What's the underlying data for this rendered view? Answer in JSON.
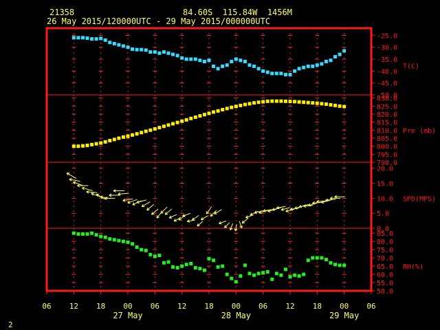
{
  "header": {
    "station": "21358",
    "location": "84.60S  115.84W  1456M",
    "period": "26 May 2015/120000UTC - 29 May 2015/000000UTC"
  },
  "page_number": "2",
  "colors": {
    "frame": "#ff1a1a",
    "grid": "#ff3030",
    "text": "#ffff66",
    "temperature": "#33ddff",
    "pressure": "#ffee00",
    "wind": "#ffff66",
    "humidity": "#22ee22",
    "background": "#000000"
  },
  "chart_data": {
    "type": "scatter",
    "x_unit": "hours from 26 May 2015 06UTC",
    "x_tick_labels": [
      "06",
      "12",
      "18",
      "00",
      "06",
      "12",
      "18",
      "00",
      "06",
      "12",
      "18",
      "00",
      "06"
    ],
    "x_tick_values": [
      0,
      6,
      12,
      18,
      24,
      30,
      36,
      42,
      48,
      54,
      60,
      66,
      72
    ],
    "date_labels": [
      {
        "label": "27 May",
        "x": 18
      },
      {
        "label": "28 May",
        "x": 42
      },
      {
        "label": "29 May",
        "x": 66
      }
    ],
    "xlim": [
      0,
      72
    ],
    "panels": [
      {
        "key": "temperature",
        "ylabel": "T(C)",
        "ylim": [
          -50,
          -22
        ],
        "ticks": [
          -25,
          -30,
          -35,
          -40,
          -45,
          -50
        ],
        "tick_labels": [
          "-25.0",
          "-30.0",
          "-35.0",
          "-40.0",
          "-45.0",
          "-50.0"
        ],
        "series": {
          "x": [
            6,
            7,
            8,
            9,
            10,
            11,
            12,
            13,
            14,
            15,
            16,
            17,
            18,
            19,
            20,
            21,
            22,
            23,
            24,
            25,
            26,
            27,
            28,
            29,
            30,
            31,
            32,
            33,
            34,
            35,
            36,
            37,
            38,
            39,
            40,
            41,
            42,
            43,
            44,
            45,
            46,
            47,
            48,
            49,
            50,
            51,
            52,
            53,
            54,
            55,
            56,
            57,
            58,
            59,
            60,
            61,
            62,
            63,
            64,
            65,
            66
          ],
          "y": [
            -26,
            -26,
            -26,
            -26.2,
            -26.5,
            -26.5,
            -26.3,
            -27,
            -28,
            -28.5,
            -29,
            -29.5,
            -30,
            -30.8,
            -31,
            -31,
            -31.2,
            -32,
            -32,
            -32.5,
            -32,
            -32.5,
            -33,
            -33.5,
            -34.5,
            -35,
            -35,
            -35,
            -35.5,
            -36,
            -35.5,
            -38,
            -39,
            -38,
            -37.5,
            -36,
            -35,
            -35.5,
            -36,
            -37.5,
            -38,
            -39,
            -40,
            -40.5,
            -41,
            -41,
            -41,
            -41.5,
            -41.5,
            -40,
            -39,
            -38.5,
            -38,
            -38,
            -37.5,
            -37,
            -36,
            -35.5,
            -34,
            -33,
            -31.5
          ]
        }
      },
      {
        "key": "pressure",
        "ylabel": "Pre (mb)",
        "ylim": [
          790,
          832
        ],
        "ticks": [
          830,
          825,
          820,
          815,
          810,
          805,
          800,
          795,
          790
        ],
        "tick_labels": [
          "830.0",
          "825.0",
          "820.0",
          "815.0",
          "810.0",
          "805.0",
          "800.0",
          "795.0",
          "790.0"
        ],
        "series": {
          "x": [
            6,
            7,
            8,
            9,
            10,
            11,
            12,
            13,
            14,
            15,
            16,
            17,
            18,
            19,
            20,
            21,
            22,
            23,
            24,
            25,
            26,
            27,
            28,
            29,
            30,
            31,
            32,
            33,
            34,
            35,
            36,
            37,
            38,
            39,
            40,
            41,
            42,
            43,
            44,
            45,
            46,
            47,
            48,
            49,
            50,
            51,
            52,
            53,
            54,
            55,
            56,
            57,
            58,
            59,
            60,
            61,
            62,
            63,
            64,
            65,
            66
          ],
          "y": [
            800,
            800,
            800.2,
            800.5,
            801,
            801.5,
            802,
            802.7,
            803.5,
            804.2,
            805,
            805.7,
            806.3,
            807,
            807.7,
            808.5,
            809.3,
            810,
            810.8,
            811.6,
            812.4,
            813.2,
            814,
            814.8,
            815.6,
            816.4,
            817.3,
            818.1,
            818.9,
            819.7,
            820.5,
            821.3,
            822,
            822.8,
            823.5,
            824.2,
            824.8,
            825.4,
            826,
            826.5,
            827,
            827.4,
            827.7,
            828,
            828.1,
            828.1,
            828.1,
            828,
            827.9,
            827.8,
            827.6,
            827.4,
            827.2,
            827,
            826.8,
            826.5,
            826.2,
            825.8,
            825.4,
            825,
            824.7
          ]
        }
      },
      {
        "key": "wind",
        "ylabel": "SPD(MPS)",
        "ylim": [
          0,
          22
        ],
        "ticks": [
          20,
          15,
          10,
          5,
          0
        ],
        "tick_labels": [
          "20.0",
          "15.0",
          "10.0",
          "5.0",
          "0.0"
        ],
        "series": {
          "x": [
            5.5,
            6.2,
            7,
            8,
            9,
            10,
            11,
            12,
            13,
            14,
            15,
            16,
            17,
            18,
            19,
            20,
            21,
            22,
            23,
            24,
            25,
            26,
            27,
            28,
            29,
            30,
            31,
            32,
            33,
            34,
            35,
            36,
            37,
            38,
            39,
            40,
            41,
            42,
            43,
            44,
            45,
            46,
            47,
            48,
            49,
            50,
            51,
            52,
            53,
            54,
            55,
            56,
            57,
            58,
            59,
            60,
            61,
            62,
            63,
            64,
            65
          ],
          "y": [
            17.5,
            16,
            14.8,
            14.2,
            13,
            12,
            11,
            10.5,
            10.2,
            10,
            11,
            12.5,
            11.5,
            9.5,
            9,
            8.5,
            9,
            8,
            7,
            5.5,
            4.5,
            6,
            5.5,
            4,
            3,
            3.5,
            4.5,
            2.5,
            3.5,
            1.5,
            3.5,
            6,
            5,
            5.5,
            2,
            1,
            0.5,
            0.2,
            1.2,
            2.5,
            4,
            5,
            5.5,
            5.5,
            6,
            6,
            6.5,
            7,
            6.5,
            6,
            6.5,
            7,
            7.5,
            7.5,
            8,
            8.5,
            9,
            9,
            9.5,
            10,
            10.5
          ],
          "direction_deg": [
            300,
            280,
            290,
            270,
            285,
            275,
            290,
            300,
            280,
            270,
            270,
            270,
            265,
            260,
            250,
            245,
            255,
            240,
            230,
            230,
            220,
            225,
            230,
            245,
            240,
            235,
            250,
            260,
            235,
            230,
            240,
            215,
            225,
            240,
            250,
            225,
            200,
            190,
            160,
            230,
            250,
            245,
            255,
            255,
            260,
            255,
            255,
            260,
            255,
            255,
            260,
            255,
            255,
            265,
            255,
            265,
            265,
            255,
            265,
            270,
            270
          ]
        }
      },
      {
        "key": "humidity",
        "ylabel": "RH(%)",
        "ylim": [
          50,
          88
        ],
        "ticks": [
          85,
          80,
          75,
          70,
          65,
          60,
          55,
          50
        ],
        "tick_labels": [
          "85.0",
          "80.0",
          "75.0",
          "70.0",
          "65.0",
          "60.0",
          "55.0",
          "50.0"
        ],
        "series": {
          "x": [
            6,
            7,
            8,
            9,
            10,
            11,
            12,
            13,
            14,
            15,
            16,
            17,
            18,
            19,
            20,
            21,
            22,
            23,
            24,
            25,
            26,
            27,
            28,
            29,
            30,
            31,
            32,
            33,
            34,
            35,
            36,
            37,
            38,
            39,
            40,
            41,
            42,
            43,
            44,
            45,
            46,
            47,
            48,
            49,
            50,
            51,
            52,
            53,
            54,
            55,
            56,
            57,
            58,
            59,
            60,
            61,
            62,
            63,
            64,
            65,
            66
          ],
          "y": [
            85,
            84.5,
            84.5,
            84.5,
            85,
            84,
            83,
            82.5,
            81.5,
            81,
            80.5,
            80,
            79.5,
            78.5,
            76.5,
            75,
            74.5,
            72,
            71,
            71.5,
            67,
            67.5,
            64.5,
            64,
            65,
            66,
            66.5,
            64,
            63.5,
            62.5,
            69.5,
            68.5,
            64.5,
            65,
            60,
            57.5,
            55.5,
            59,
            65.5,
            60.5,
            59.5,
            60.5,
            61,
            61.5,
            57,
            60.5,
            59.5,
            63,
            58.5,
            59.5,
            59,
            60,
            68.5,
            70,
            70,
            70,
            69,
            67,
            66,
            65.5,
            65.5
          ]
        }
      }
    ]
  }
}
